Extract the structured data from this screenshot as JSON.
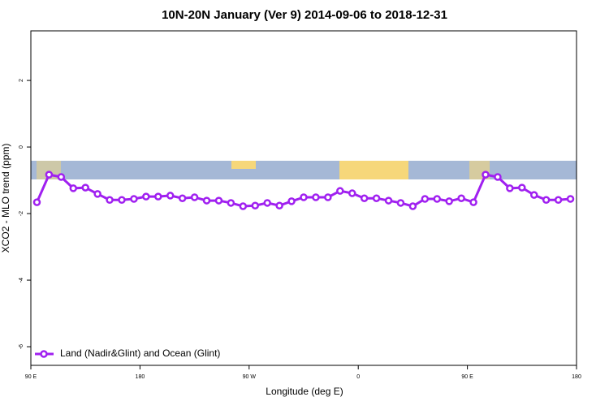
{
  "chart_data": {
    "type": "line",
    "title": "10N-20N January (Ver 9)   2014-09-06 to 2018-12-31",
    "xlabel": "Longitude (deg E)",
    "ylabel": "XCO2 - MLO trend (ppm)",
    "x": [
      95,
      105,
      115,
      125,
      135,
      145,
      155,
      165,
      175,
      185,
      195,
      205,
      215,
      225,
      235,
      245,
      255,
      265,
      275,
      285,
      295,
      305,
      315,
      325,
      335,
      345,
      355,
      365,
      375,
      385,
      395,
      405,
      415,
      425,
      435,
      445,
      455,
      465,
      475,
      485,
      495,
      505,
      515,
      525,
      535
    ],
    "series": [
      {
        "name": "Land (Nadir&Glint) and Ocean (Glint)",
        "color": "#a020f0",
        "values": [
          -1.66,
          -0.83,
          -0.9,
          -1.24,
          -1.22,
          -1.41,
          -1.59,
          -1.59,
          -1.56,
          -1.49,
          -1.49,
          -1.46,
          -1.54,
          -1.51,
          -1.61,
          -1.61,
          -1.68,
          -1.78,
          -1.76,
          -1.68,
          -1.76,
          -1.63,
          -1.51,
          -1.51,
          -1.51,
          -1.32,
          -1.39,
          -1.54,
          -1.54,
          -1.61,
          -1.68,
          -1.78,
          -1.56,
          -1.56,
          -1.63,
          -1.54,
          -1.66,
          -0.83,
          -0.9,
          -1.24,
          -1.22,
          -1.44,
          -1.59,
          -1.59,
          -1.56
        ]
      }
    ],
    "xlim": [
      90,
      540
    ],
    "xticks": [
      {
        "value": 90,
        "label": "90 E"
      },
      {
        "value": 180,
        "label": "180"
      },
      {
        "value": 270,
        "label": "90 W"
      },
      {
        "value": 360,
        "label": "0"
      },
      {
        "value": 450,
        "label": "90 E"
      },
      {
        "value": 540,
        "label": "180"
      }
    ],
    "ylim": [
      -6.56,
      3.49
    ],
    "yticks": [
      -6,
      -4,
      -2,
      0,
      2
    ],
    "legend": "bottom-left"
  }
}
